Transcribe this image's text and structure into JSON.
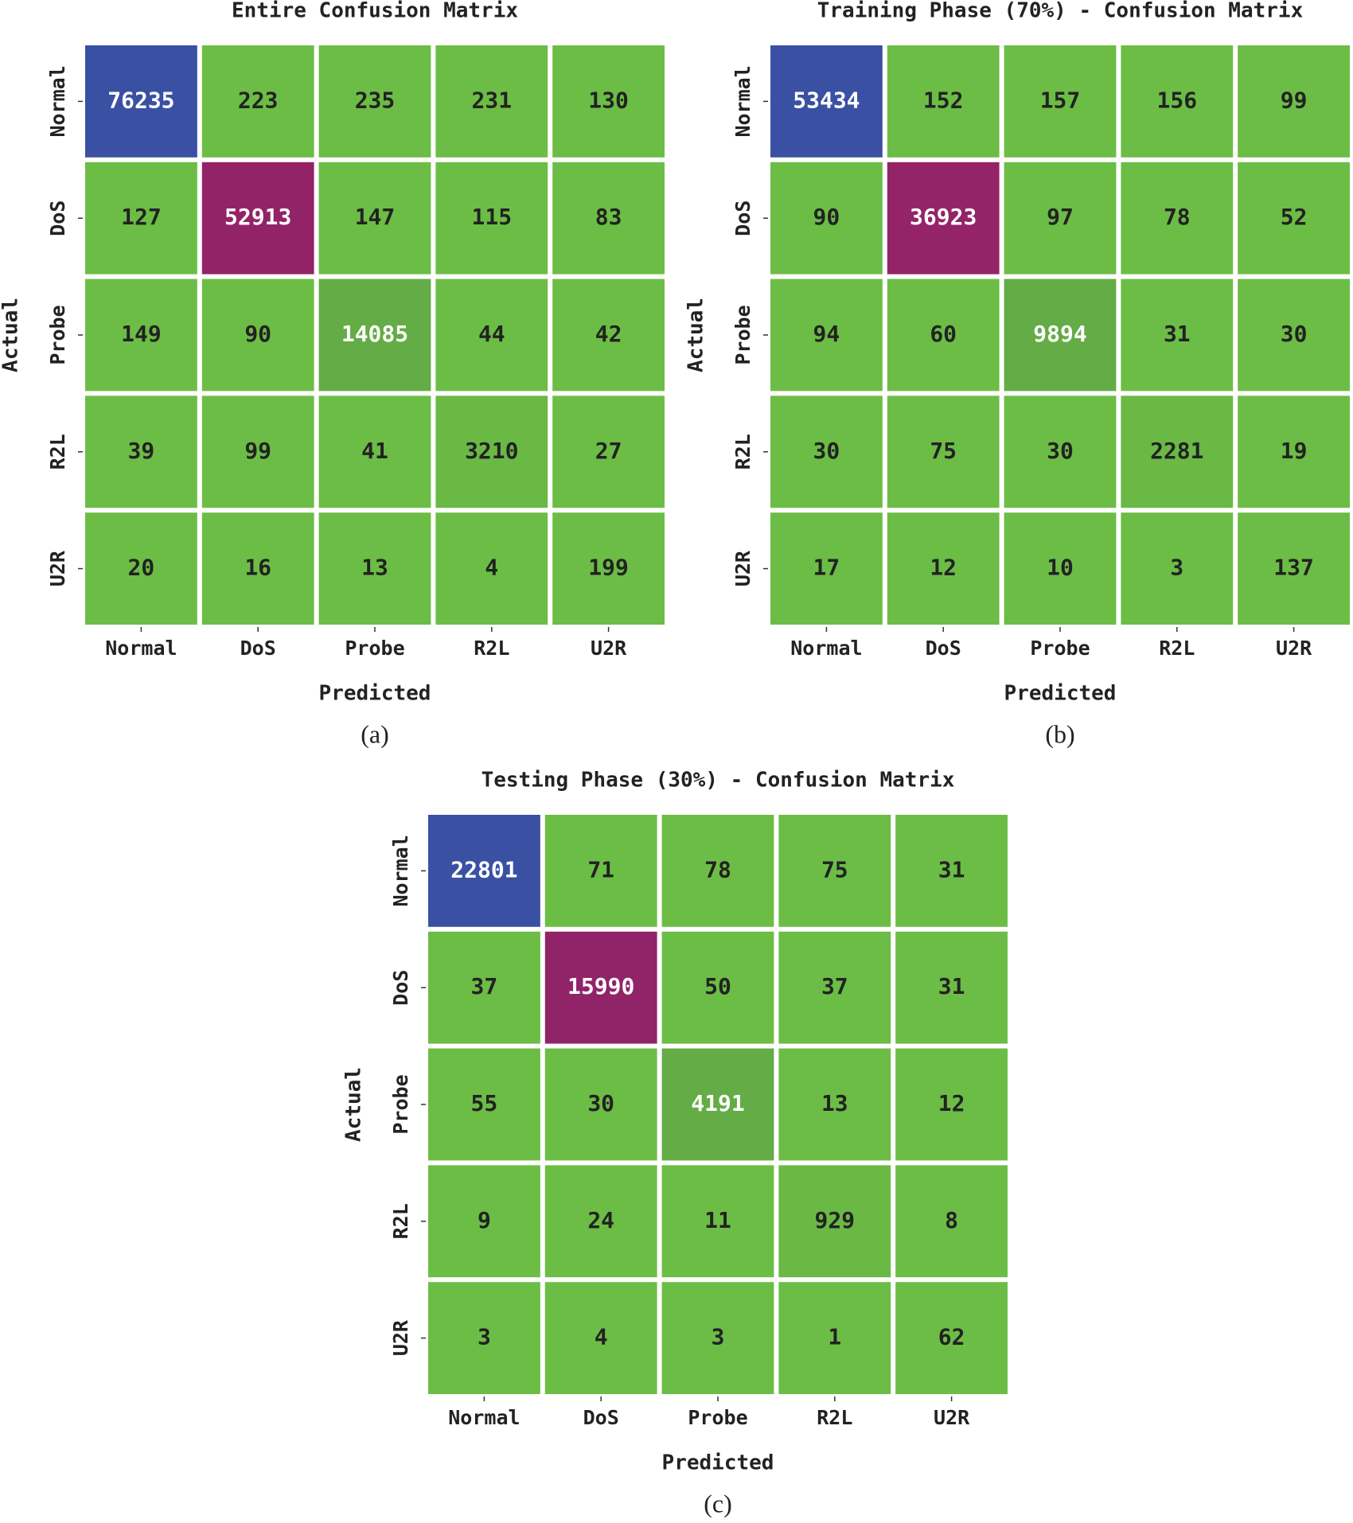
{
  "chart_data": [
    {
      "type": "heatmap",
      "title": "Entire Confusion Matrix",
      "xlabel": "Predicted",
      "ylabel": "Actual",
      "caption": "(a)",
      "x_categories": [
        "Normal",
        "DoS",
        "Probe",
        "R2L",
        "U2R"
      ],
      "y_categories": [
        "Normal",
        "DoS",
        "Probe",
        "R2L",
        "U2R"
      ],
      "values": [
        [
          76235,
          223,
          235,
          231,
          130
        ],
        [
          127,
          52913,
          147,
          115,
          83
        ],
        [
          149,
          90,
          14085,
          44,
          42
        ],
        [
          39,
          99,
          41,
          3210,
          27
        ],
        [
          20,
          16,
          13,
          4,
          199
        ]
      ],
      "colormap": [
        "#6cbd45",
        "#5e9f45",
        "#9b1f62",
        "#3a50a3"
      ]
    },
    {
      "type": "heatmap",
      "title": "Training Phase (70%) - Confusion Matrix",
      "xlabel": "Predicted",
      "ylabel": "Actual",
      "caption": "(b)",
      "x_categories": [
        "Normal",
        "DoS",
        "Probe",
        "R2L",
        "U2R"
      ],
      "y_categories": [
        "Normal",
        "DoS",
        "Probe",
        "R2L",
        "U2R"
      ],
      "values": [
        [
          53434,
          152,
          157,
          156,
          99
        ],
        [
          90,
          36923,
          97,
          78,
          52
        ],
        [
          94,
          60,
          9894,
          31,
          30
        ],
        [
          30,
          75,
          30,
          2281,
          19
        ],
        [
          17,
          12,
          10,
          3,
          137
        ]
      ],
      "colormap": [
        "#6cbd45",
        "#5e9f45",
        "#9b1f62",
        "#3a50a3"
      ]
    },
    {
      "type": "heatmap",
      "title": "Testing Phase (30%) - Confusion Matrix",
      "xlabel": "Predicted",
      "ylabel": "Actual",
      "caption": "(c)",
      "x_categories": [
        "Normal",
        "DoS",
        "Probe",
        "R2L",
        "U2R"
      ],
      "y_categories": [
        "Normal",
        "DoS",
        "Probe",
        "R2L",
        "U2R"
      ],
      "values": [
        [
          22801,
          71,
          78,
          75,
          31
        ],
        [
          37,
          15990,
          50,
          37,
          31
        ],
        [
          55,
          30,
          4191,
          13,
          12
        ],
        [
          9,
          24,
          11,
          929,
          8
        ],
        [
          3,
          4,
          3,
          1,
          62
        ]
      ],
      "colormap": [
        "#6cbd45",
        "#5e9f45",
        "#9b1f62",
        "#3a50a3"
      ]
    }
  ]
}
